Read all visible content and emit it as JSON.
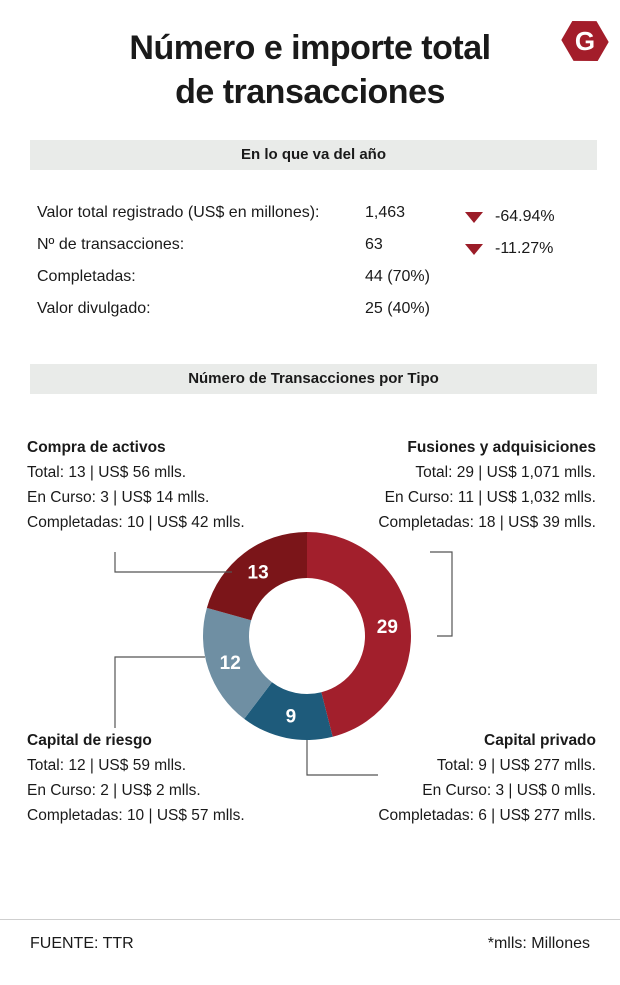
{
  "title_lines": [
    "Número e importe total",
    "de transacciones"
  ],
  "logo": {
    "letter": "G",
    "color": "#a31d2a",
    "icon": "brand-logo-icon"
  },
  "section1": {
    "heading": "En lo que va del año",
    "rows": [
      {
        "label": "Valor total registrado (US$ en millones):",
        "value": "1,463",
        "change": "-64.94%",
        "trend": "down"
      },
      {
        "label": "Nº de transacciones:",
        "value": "63",
        "change": "-11.27%",
        "trend": "down"
      },
      {
        "label": "Completadas:",
        "value": "44 (70%)",
        "change": "",
        "trend": ""
      },
      {
        "label": "Valor divulgado:",
        "value": "25 (40%)",
        "change": "",
        "trend": ""
      }
    ]
  },
  "section2": {
    "heading": "Número de Transacciones por Tipo"
  },
  "chart_data": {
    "type": "pie",
    "variant": "donut",
    "categories": [
      "Fusiones y adquisiciones",
      "Capital privado",
      "Capital de riesgo",
      "Compra de activos"
    ],
    "values": [
      29,
      9,
      12,
      13
    ],
    "colors": [
      "#a21f2c",
      "#1e5b7b",
      "#6f8fa3",
      "#7b1519"
    ],
    "details": [
      {
        "name": "Fusiones y adquisiciones",
        "lines": [
          "Total: 29 | US$ 1,071 mlls.",
          "En Curso: 11 | US$ 1,032 mlls.",
          "Completadas: 18 | US$ 39 mlls."
        ]
      },
      {
        "name": "Capital privado",
        "lines": [
          "Total: 9 | US$ 277 mlls.",
          "En Curso: 3 | US$ 0 mlls.",
          "Completadas: 6 | US$ 277 mlls."
        ]
      },
      {
        "name": "Capital de riesgo",
        "lines": [
          "Total: 12 | US$ 59 mlls.",
          "En Curso: 2 | US$ 2 mlls.",
          "Completadas: 10 | US$ 57 mlls."
        ]
      },
      {
        "name": "Compra de activos",
        "lines": [
          "Total: 13 | US$ 56 mlls.",
          "En Curso: 3 | US$ 14 mlls.",
          "Completadas: 10 | US$ 42 mlls."
        ]
      }
    ]
  },
  "footer": {
    "source": "FUENTE: TTR",
    "note": "*mlls: Millones"
  }
}
